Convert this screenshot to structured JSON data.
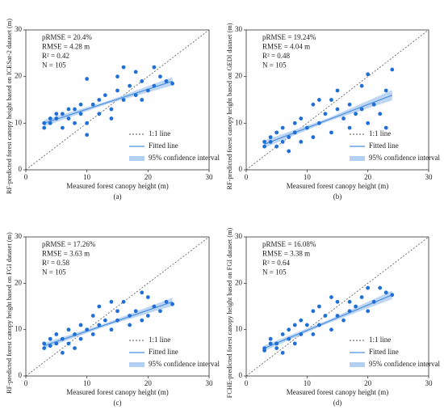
{
  "chart_data": [
    {
      "type": "scatter",
      "caption": "(a)",
      "xlabel": "Measured forest canopy height (m)",
      "ylabel": "RF-predicted forest canopy height based on ICESat-2 dataset (m)",
      "annotations": [
        "pRMSE = 20.4%",
        "RMSE = 4.28 m",
        "R² = 0.42",
        "N = 105"
      ],
      "legend_labels": [
        "1:1 line",
        "Fitted line",
        "95% confidence interval"
      ],
      "color": "#1f6fd6",
      "fit_color": "#4a90e2",
      "ci_color": "#b3cff2",
      "xlim": [
        0,
        30
      ],
      "ylim": [
        0,
        30
      ],
      "xticks": [
        0,
        10,
        20,
        30
      ],
      "yticks": [
        0,
        10,
        20,
        30
      ],
      "x": [
        3,
        3,
        4,
        4,
        5,
        5,
        6,
        6,
        7,
        7,
        8,
        8,
        9,
        9,
        10,
        10,
        10,
        11,
        12,
        12,
        13,
        14,
        15,
        15,
        16,
        16,
        17,
        18,
        18,
        19,
        20,
        21,
        21,
        22,
        23,
        24,
        14,
        19
      ],
      "y": [
        9,
        10,
        11,
        10,
        12,
        11,
        9,
        12,
        13,
        11,
        10,
        13,
        14,
        12,
        7.5,
        19.5,
        10,
        14,
        15,
        12,
        16,
        13,
        17,
        20,
        22,
        15,
        18,
        16,
        21,
        19,
        17,
        22,
        18,
        20,
        19,
        18.5,
        11,
        15
      ],
      "fit": {
        "x": [
          3,
          24
        ],
        "y": [
          10,
          19
        ]
      },
      "ci": {
        "x": [
          3,
          13.5,
          24
        ],
        "lower": [
          9.3,
          14.2,
          18.1
        ],
        "upper": [
          10.7,
          14.8,
          19.9
        ]
      }
    },
    {
      "type": "scatter",
      "caption": "(b)",
      "xlabel": "Measured forest canopy height (m)",
      "ylabel": "RF-predicted forest canopy height based on GEDI dataset (m)",
      "annotations": [
        "pRMSE = 19.24%",
        "RMSE = 4.04 m",
        "R² = 0.48",
        "N = 105"
      ],
      "legend_labels": [
        "1:1 line",
        "Fitted line",
        "95% confidence interval"
      ],
      "color": "#1f6fd6",
      "fit_color": "#4a90e2",
      "ci_color": "#b3cff2",
      "xlim": [
        0,
        30
      ],
      "ylim": [
        0,
        30
      ],
      "xticks": [
        0,
        10,
        20,
        30
      ],
      "yticks": [
        0,
        10,
        20,
        30
      ],
      "x": [
        3,
        3,
        4,
        4,
        5,
        5,
        6,
        6,
        7,
        7,
        8,
        8,
        9,
        9,
        10,
        11,
        11,
        12,
        12,
        13,
        14,
        14,
        15,
        15,
        16,
        17,
        17,
        18,
        19,
        20,
        20,
        21,
        22,
        23,
        23,
        24,
        19
      ],
      "y": [
        6,
        5,
        7,
        6,
        8,
        5,
        9,
        6,
        7,
        4,
        8,
        10,
        6,
        11,
        9,
        14,
        7,
        15,
        10,
        12,
        15,
        8,
        13,
        17,
        11,
        14,
        9,
        12,
        13,
        20.5,
        10,
        14,
        12,
        17,
        9,
        21.5,
        18
      ],
      "fit": {
        "x": [
          3,
          24
        ],
        "y": [
          5.5,
          16
        ]
      },
      "ci": {
        "x": [
          3,
          13.5,
          24
        ],
        "lower": [
          4.7,
          10.4,
          14.9
        ],
        "upper": [
          6.3,
          11.1,
          17.1
        ]
      }
    },
    {
      "type": "scatter",
      "caption": "(c)",
      "xlabel": "Measured forest canopy height (m)",
      "ylabel": "RF-predicted forest canopy height based on FGI dataset (m)",
      "annotations": [
        "pRMSE = 17.26%",
        "RMSE = 3.63 m",
        "R² = 0.58",
        "N = 105"
      ],
      "legend_labels": [
        "1:1 line",
        "Fitted line",
        "95% confidence interval"
      ],
      "color": "#1f6fd6",
      "fit_color": "#4a90e2",
      "ci_color": "#b3cff2",
      "xlim": [
        0,
        30
      ],
      "ylim": [
        0,
        30
      ],
      "xticks": [
        0,
        10,
        20,
        30
      ],
      "yticks": [
        0,
        10,
        20,
        30
      ],
      "x": [
        3,
        3,
        4,
        4,
        5,
        5,
        6,
        6,
        7,
        7,
        8,
        8,
        9,
        9,
        10,
        11,
        11,
        12,
        12,
        13,
        14,
        14,
        15,
        15,
        16,
        17,
        17,
        18,
        19,
        20,
        20,
        21,
        22,
        23,
        24,
        19
      ],
      "y": [
        7,
        6,
        8,
        6.5,
        9,
        7,
        5,
        8,
        7,
        10,
        6,
        9,
        8,
        11,
        10,
        13,
        9,
        15,
        11,
        12,
        16,
        10,
        14,
        12,
        16,
        13,
        11,
        14,
        12,
        17,
        13,
        15,
        14,
        16,
        15.5,
        18
      ],
      "fit": {
        "x": [
          3,
          24
        ],
        "y": [
          6.5,
          16
        ]
      },
      "ci": {
        "x": [
          3,
          13.5,
          24
        ],
        "lower": [
          5.9,
          10.9,
          15.1
        ],
        "upper": [
          7.1,
          11.6,
          16.9
        ]
      }
    },
    {
      "type": "scatter",
      "caption": "(d)",
      "xlabel": "Measured forest canopy height (m)",
      "ylabel": "FCHE-predicted forest canopy height based on FGI dataset (m)",
      "annotations": [
        "pRMSE = 16.08%",
        "RMSE = 3.38 m",
        "R² = 0.64",
        "N = 105"
      ],
      "legend_labels": [
        "1:1 line",
        "Fitted line",
        "95% confidence interval"
      ],
      "color": "#1f6fd6",
      "fit_color": "#4a90e2",
      "ci_color": "#b3cff2",
      "xlim": [
        0,
        30
      ],
      "ylim": [
        0,
        30
      ],
      "xticks": [
        0,
        10,
        20,
        30
      ],
      "yticks": [
        0,
        10,
        20,
        30
      ],
      "x": [
        3,
        3,
        4,
        4,
        5,
        5,
        6,
        6,
        7,
        7,
        8,
        8,
        9,
        9,
        10,
        11,
        11,
        12,
        12,
        13,
        14,
        14,
        15,
        15,
        16,
        17,
        17,
        18,
        19,
        20,
        20,
        21,
        22,
        23,
        24
      ],
      "y": [
        6,
        5.5,
        8,
        7,
        7,
        6,
        9,
        5,
        8,
        10,
        7,
        11,
        9,
        12,
        11,
        14,
        9,
        15,
        11,
        13,
        17,
        10,
        16,
        13,
        12,
        16,
        14,
        15,
        17,
        19,
        14,
        16,
        19,
        18,
        17.5
      ],
      "fit": {
        "x": [
          3,
          24
        ],
        "y": [
          6,
          17.5
        ]
      },
      "ci": {
        "x": [
          3,
          13.5,
          24
        ],
        "lower": [
          5.4,
          11.4,
          16.6
        ],
        "upper": [
          6.6,
          12.1,
          18.4
        ]
      }
    }
  ]
}
